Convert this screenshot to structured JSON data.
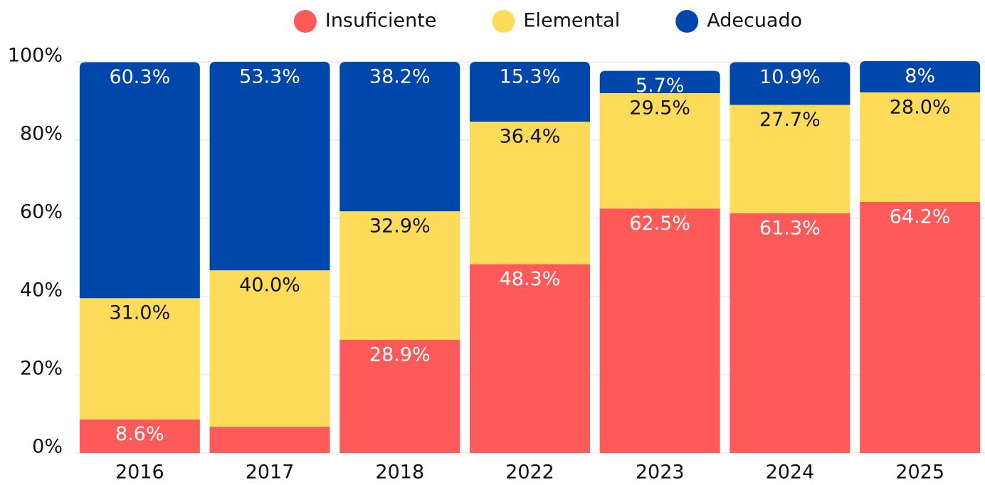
{
  "chart_data": {
    "type": "stacked-bar",
    "categories": [
      "2016",
      "2017",
      "2018",
      "2022",
      "2023",
      "2024",
      "2025"
    ],
    "series": [
      {
        "name": "Insuficiente",
        "color": "#ff5a5a",
        "values": [
          8.6,
          6.7,
          28.9,
          48.3,
          62.5,
          61.3,
          64.2
        ],
        "value_labels": [
          "8.6%",
          null,
          "28.9%",
          "48.3%",
          "62.5%",
          "61.3%",
          "64.2%"
        ]
      },
      {
        "name": "Elemental",
        "color": "#fedc5a",
        "values": [
          31.0,
          40.0,
          32.9,
          36.4,
          29.5,
          27.7,
          28.0
        ],
        "value_labels": [
          "31.0%",
          "40.0%",
          "32.9%",
          "36.4%",
          "29.5%",
          "27.7%",
          "28.0%"
        ]
      },
      {
        "name": "Adecuado",
        "color": "#0047ab",
        "values": [
          60.3,
          53.3,
          38.2,
          15.3,
          5.7,
          10.9,
          8
        ],
        "value_labels": [
          "60.3%",
          "53.3%",
          "38.2%",
          "15.3%",
          "5.7%",
          "10.9%",
          "8%"
        ]
      }
    ],
    "ylim": [
      0,
      100
    ],
    "yticks": [
      {
        "value": 0,
        "label": "0%"
      },
      {
        "value": 20,
        "label": "20%"
      },
      {
        "value": 40,
        "label": "40%"
      },
      {
        "value": 60,
        "label": "60%"
      },
      {
        "value": 80,
        "label": "80%"
      },
      {
        "value": 100,
        "label": "100%"
      }
    ],
    "grid": true,
    "legend": "top"
  }
}
